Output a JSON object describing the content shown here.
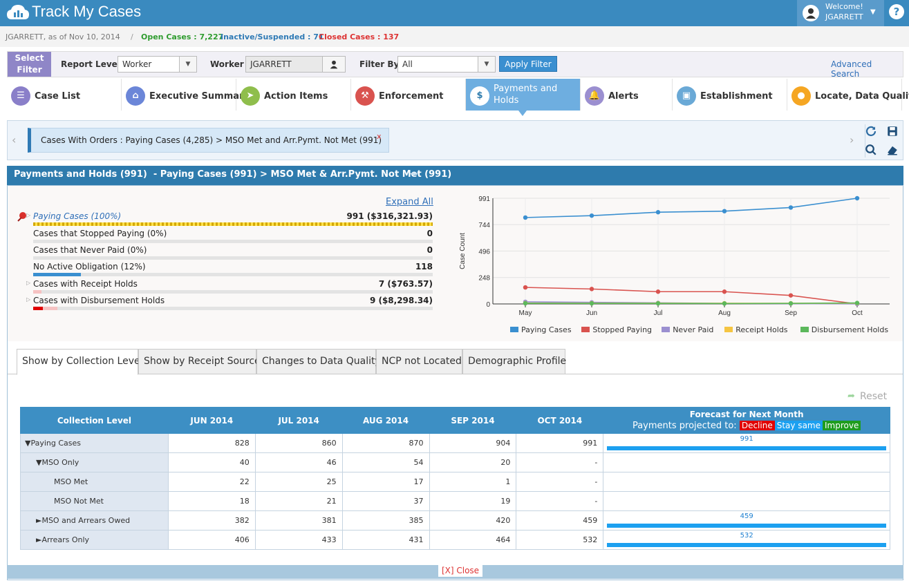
{
  "app": {
    "title": "Track My Cases"
  },
  "user": {
    "welcome": "Welcome!",
    "name": "JGARRETT",
    "help": "?"
  },
  "status": {
    "prefix": "JGARRETT, as of Nov 10, 2014",
    "sep": "/",
    "open": "Open Cases : 7,227",
    "inactive": "Inactive/Suspended : 71",
    "closed": "Closed Cases : 137"
  },
  "filter": {
    "select_filter": "Select Filter",
    "report_level_label": "Report Level",
    "report_level_value": "Worker",
    "worker_label": "Worker",
    "worker_value": "JGARRETT",
    "filter_by_label": "Filter By",
    "filter_by_value": "All",
    "apply": "Apply Filter",
    "advanced": "Advanced Search"
  },
  "tabs": [
    {
      "label": "Case List",
      "icon": "list-icon",
      "color": "#8a7fc9"
    },
    {
      "label": "Executive Summary",
      "icon": "home-icon",
      "color": "#6b86d8"
    },
    {
      "label": "Action Items",
      "icon": "send-icon",
      "color": "#8fbe4c"
    },
    {
      "label": "Enforcement",
      "icon": "gavel-icon",
      "color": "#d9534f"
    },
    {
      "label": "Payments and Holds",
      "icon": "money-icon",
      "color": "#ffffff"
    },
    {
      "label": "Alerts",
      "icon": "bell-icon",
      "color": "#9b8fd0"
    },
    {
      "label": "Establishment",
      "icon": "briefcase-icon",
      "color": "#6aa9d6"
    },
    {
      "label": "Locate, Data Quality",
      "icon": "pin-icon",
      "color": "#f5a623"
    }
  ],
  "breadcrumb": {
    "text": "Cases With Orders : Paying Cases (4,285) > MSO Met and Arr.Pymt. Not Met (991)",
    "close": "x"
  },
  "panel": {
    "title": "Payments and Holds (991)  - Paying Cases (991) > MSO Met & Arr.Pymt. Not Met (991)"
  },
  "summary": {
    "expand_all": "Expand All",
    "rows": [
      {
        "label": "Paying Cases (100%)",
        "value": "991 ($316,321.93)",
        "fill": 1.0
      },
      {
        "label": "Cases that Stopped Paying (0%)",
        "value": "0",
        "fill": 0
      },
      {
        "label": "Cases that Never Paid (0%)",
        "value": "0",
        "fill": 0
      },
      {
        "label": "No Active Obligation (12%)",
        "value": "118",
        "fill": 0.12
      },
      {
        "label": "Cases with Receipt Holds",
        "value": "7 ($763.57)",
        "fill": 0.02
      },
      {
        "label": "Cases with Disbursement Holds",
        "value": "9 ($8,298.34)",
        "fill": 0.03
      }
    ]
  },
  "chart_data": {
    "type": "line",
    "ylabel": "Case Count",
    "ylim": [
      0,
      991
    ],
    "yticks": [
      0,
      248,
      496,
      744,
      991
    ],
    "categories": [
      "May",
      "Jun",
      "Jul",
      "Aug",
      "Sep",
      "Oct"
    ],
    "series": [
      {
        "name": "Paying Cases",
        "color": "#3a8fd0",
        "values": [
          810,
          828,
          860,
          870,
          904,
          991
        ]
      },
      {
        "name": "Stopped Paying",
        "color": "#d9534f",
        "values": [
          155,
          140,
          115,
          115,
          80,
          0
        ]
      },
      {
        "name": "Never Paid",
        "color": "#9b8fd0",
        "values": [
          20,
          15,
          10,
          5,
          3,
          0
        ]
      },
      {
        "name": "Receipt Holds",
        "color": "#f5c542",
        "values": [
          8,
          7,
          7,
          6,
          6,
          7
        ]
      },
      {
        "name": "Disbursement Holds",
        "color": "#5cb85c",
        "values": [
          6,
          5,
          5,
          4,
          5,
          9
        ]
      }
    ]
  },
  "content_tabs": [
    "Show by Collection Level",
    "Show by Receipt Source",
    "Changes to Data Quality",
    "NCP not Located",
    "Demographic Profile"
  ],
  "reset": "Reset",
  "grid": {
    "headers": [
      "Collection Level",
      "JUN 2014",
      "JUL 2014",
      "AUG 2014",
      "SEP 2014",
      "OCT 2014"
    ],
    "forecast_title": "Forecast for Next Month",
    "forecast_sub": "Payments projected to:",
    "decline": "Decline",
    "same": "Stay same",
    "improve": "Improve",
    "rows": [
      {
        "label": "▼Paying Cases",
        "indent": 0,
        "cells": [
          "828",
          "860",
          "870",
          "904",
          "991"
        ],
        "forecast": "991"
      },
      {
        "label": "▼MSO Only",
        "indent": 1,
        "cells": [
          "40",
          "46",
          "54",
          "20",
          "-"
        ],
        "forecast": ""
      },
      {
        "label": "MSO Met",
        "indent": 2,
        "cells": [
          "22",
          "25",
          "17",
          "1",
          "-"
        ],
        "forecast": ""
      },
      {
        "label": "MSO Not Met",
        "indent": 2,
        "cells": [
          "18",
          "21",
          "37",
          "19",
          "-"
        ],
        "forecast": ""
      },
      {
        "label": "►MSO and Arrears Owed",
        "indent": 1,
        "cells": [
          "382",
          "381",
          "385",
          "420",
          "459"
        ],
        "forecast": "459"
      },
      {
        "label": "►Arrears Only",
        "indent": 1,
        "cells": [
          "406",
          "433",
          "431",
          "464",
          "532"
        ],
        "forecast": "532"
      }
    ]
  },
  "footer": {
    "close": "[X] Close"
  }
}
